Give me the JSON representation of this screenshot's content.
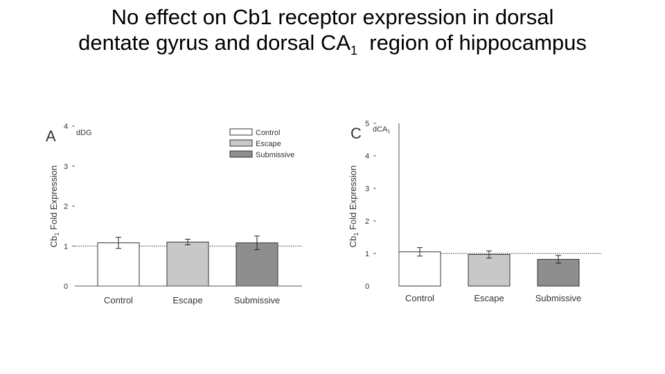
{
  "title": {
    "line1": "No effect on Cb1 receptor expression in dorsal",
    "line2_pre": "dentate gyrus and dorsal CA",
    "line2_sub": "1",
    "line2_post": "  region of hippocampus"
  },
  "chart_data": [
    {
      "type": "bar",
      "panel_label": "A",
      "region_label": "dDG",
      "ylabel_pre": "Cb",
      "ylabel_sub": "1",
      "ylabel_post": " Fold Expression",
      "categories": [
        "Control",
        "Escape",
        "Submissive"
      ],
      "values": [
        1.08,
        1.1,
        1.08
      ],
      "errors": [
        0.14,
        0.07,
        0.17
      ],
      "ylim": [
        0,
        4
      ],
      "yticks": [
        0,
        1,
        2,
        3,
        4
      ],
      "reference_line": 1,
      "colors": [
        "#ffffff",
        "#c8c8c8",
        "#8e8e8e"
      ],
      "legend": {
        "position": "top-right",
        "entries": [
          "Control",
          "Escape",
          "Submissive"
        ]
      }
    },
    {
      "type": "bar",
      "panel_label": "C",
      "region_label_pre": "dCA",
      "region_label_sub": "1",
      "ylabel_pre": "Cb",
      "ylabel_sub": "1",
      "ylabel_post": " Fold Expression",
      "categories": [
        "Control",
        "Escape",
        "Submissive"
      ],
      "values": [
        1.05,
        0.97,
        0.82
      ],
      "errors": [
        0.13,
        0.11,
        0.12
      ],
      "ylim": [
        0,
        5
      ],
      "yticks": [
        0,
        1,
        2,
        3,
        4,
        5
      ],
      "reference_line": 1,
      "colors": [
        "#ffffff",
        "#c8c8c8",
        "#8e8e8e"
      ]
    }
  ]
}
